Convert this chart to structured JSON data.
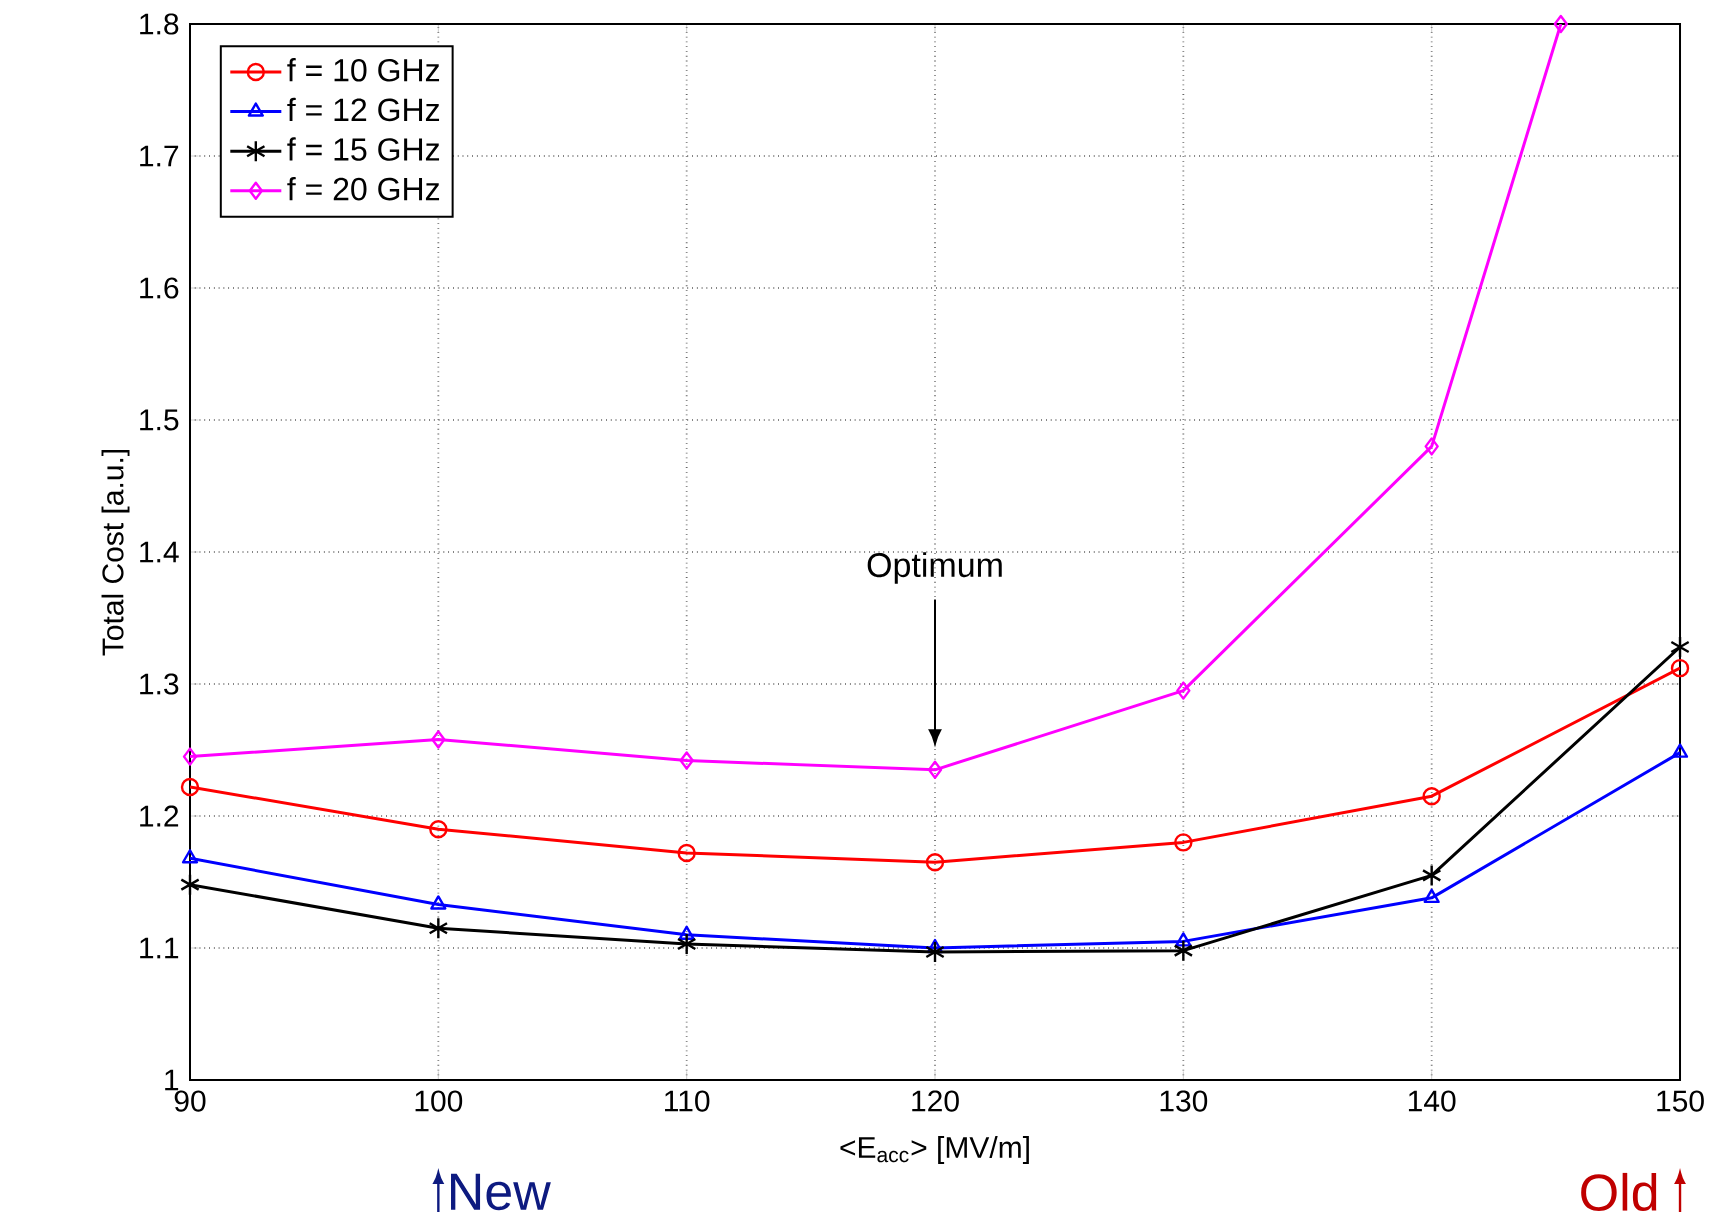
{
  "chart_data": {
    "type": "line",
    "xlabel": "<E$_{acc}$> [MV/m]",
    "ylabel": "Total Cost [a.u.]",
    "x": [
      90,
      100,
      110,
      120,
      130,
      140,
      150
    ],
    "xlim": [
      90,
      150
    ],
    "xticks": [
      90,
      100,
      110,
      120,
      130,
      140,
      150
    ],
    "ylim": [
      1,
      1.8
    ],
    "yticks": [
      1,
      1.1,
      1.2,
      1.3,
      1.4,
      1.5,
      1.6,
      1.7,
      1.8
    ],
    "grid": true,
    "legend": "top left",
    "line_style": "solid",
    "series": [
      {
        "name": "f = 10 GHz",
        "color": "#ff0000",
        "marker": "circle",
        "values": [
          1.222,
          1.19,
          1.172,
          1.165,
          1.18,
          1.215,
          1.312
        ]
      },
      {
        "name": "f = 12 GHz",
        "color": "#0000ff",
        "marker": "triangle",
        "values": [
          1.168,
          1.133,
          1.11,
          1.1,
          1.105,
          1.138,
          1.248
        ]
      },
      {
        "name": "f = 15 GHz",
        "color": "#000000",
        "marker": "cross",
        "values": [
          1.148,
          1.115,
          1.103,
          1.097,
          1.098,
          1.155,
          1.328
        ]
      },
      {
        "name": "f = 20 GHz",
        "color": "#ff00ff",
        "marker": "diamond",
        "x": [
          90,
          100,
          110,
          120,
          130,
          140,
          145.2
        ],
        "values": [
          1.245,
          1.258,
          1.242,
          1.235,
          1.295,
          1.48,
          1.8
        ]
      }
    ],
    "annotations": [
      "Optimum",
      "New",
      "Old"
    ]
  }
}
